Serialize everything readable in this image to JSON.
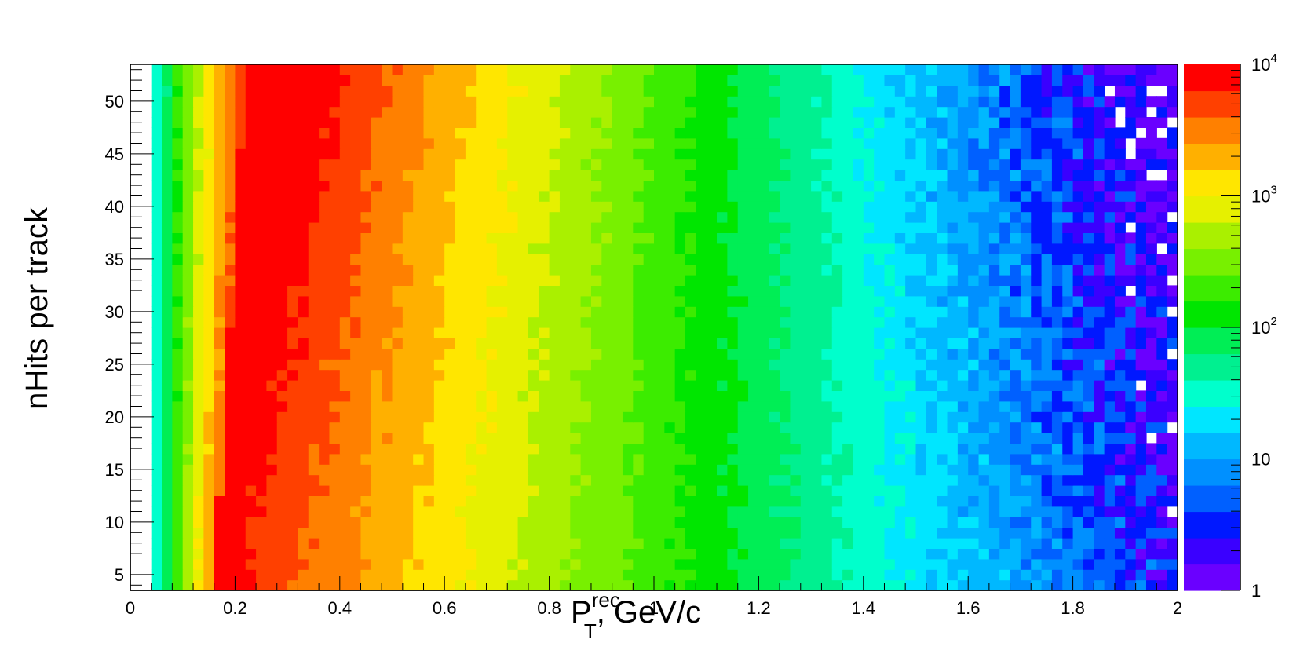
{
  "chart_data": {
    "type": "heatmap",
    "title": "",
    "xlabel": {
      "main": "P",
      "sup": "rec",
      "sub": "T",
      "suffix": ", GeV/c"
    },
    "ylabel": "nHits per track",
    "xlim": [
      0,
      2
    ],
    "ylim": [
      3.5,
      53.5
    ],
    "x_bin_width": 0.02,
    "y_bin_width": 1,
    "x_ticks": [
      {
        "value": 0,
        "label": "0"
      },
      {
        "value": 0.2,
        "label": "0.2"
      },
      {
        "value": 0.4,
        "label": "0.4"
      },
      {
        "value": 0.6,
        "label": "0.6"
      },
      {
        "value": 0.8,
        "label": "0.8"
      },
      {
        "value": 1,
        "label": "1"
      },
      {
        "value": 1.2,
        "label": "1.2"
      },
      {
        "value": 1.4,
        "label": "1.4"
      },
      {
        "value": 1.6,
        "label": "1.6"
      },
      {
        "value": 1.8,
        "label": "1.8"
      },
      {
        "value": 2,
        "label": "2"
      }
    ],
    "y_ticks": [
      {
        "value": 5,
        "label": "5"
      },
      {
        "value": 10,
        "label": "10"
      },
      {
        "value": 15,
        "label": "15"
      },
      {
        "value": 20,
        "label": "20"
      },
      {
        "value": 25,
        "label": "25"
      },
      {
        "value": 30,
        "label": "30"
      },
      {
        "value": 35,
        "label": "35"
      },
      {
        "value": 40,
        "label": "40"
      },
      {
        "value": 45,
        "label": "45"
      },
      {
        "value": 50,
        "label": "50"
      }
    ],
    "z_scale": "log",
    "z_range": [
      1,
      10000
    ],
    "colorbar_ticks": [
      {
        "value": 1,
        "base": "1",
        "exp": ""
      },
      {
        "value": 10,
        "base": "10",
        "exp": ""
      },
      {
        "value": 100,
        "base": "10",
        "exp": "2"
      },
      {
        "value": 1000,
        "base": "10",
        "exp": "3"
      },
      {
        "value": 10000,
        "base": "10",
        "exp": "4"
      }
    ],
    "palette": [
      "#6a00ff",
      "#3a00ff",
      "#0018ff",
      "#0060ff",
      "#0090ff",
      "#00b8ff",
      "#00e6ff",
      "#00ffcc",
      "#00f090",
      "#00ee55",
      "#00e600",
      "#3cec00",
      "#78f000",
      "#aaf000",
      "#e6f000",
      "#ffe600",
      "#ffb000",
      "#ff8000",
      "#ff4000",
      "#ff0000"
    ],
    "grid": false,
    "legend": "colorbar-right",
    "density_model": {
      "description": "Track counts per (pT, nHits) bin; ridge of maximum near pT 0.2-0.3 GeV/c for high nHits, falling to sparse counts at high pT",
      "peak_log10": 4.0,
      "peak_pt": 0.25,
      "empty_below_pt": 0.04
    }
  }
}
